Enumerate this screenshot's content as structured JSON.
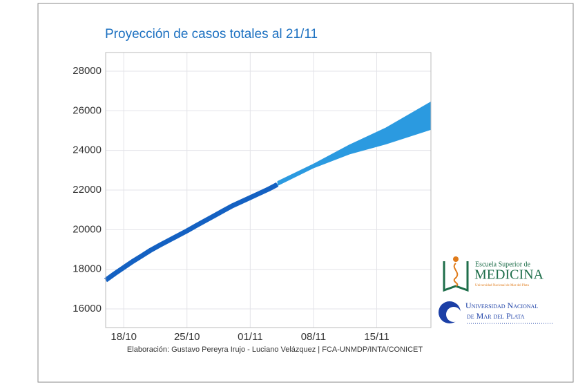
{
  "chart_data": {
    "type": "line",
    "title": "Proyección de casos totales al 21/11",
    "source": "Elaboración: Gustavo Pereyra Irujo - Luciano Velázquez | FCA-UNMDP/INTA/CONICET",
    "xlim": [
      "16/10",
      "21/11"
    ],
    "xticks": [
      "18/10",
      "25/10",
      "01/11",
      "08/11",
      "15/11"
    ],
    "ylim": [
      15060,
      28940
    ],
    "yticks": [
      16000,
      18000,
      20000,
      22000,
      24000,
      26000,
      28000
    ],
    "grid": true,
    "series": [
      {
        "color": "#1461c2",
        "x": [
          "16/10",
          "17/10",
          "18/10",
          "19/10",
          "20/10",
          "21/10",
          "22/10",
          "23/10",
          "24/10",
          "25/10",
          "26/10",
          "27/10",
          "28/10",
          "29/10",
          "30/10",
          "31/10",
          "01/11",
          "02/11",
          "03/11",
          "04/11"
        ],
        "values": [
          17450,
          17780,
          18090,
          18400,
          18680,
          18970,
          19220,
          19460,
          19700,
          19940,
          20200,
          20450,
          20700,
          20950,
          21200,
          21410,
          21620,
          21830,
          22040,
          22280
        ]
      }
    ],
    "band": {
      "color": "#2b9ae0",
      "x": [
        "04/11",
        "08/11",
        "12/11",
        "16/11",
        "21/11"
      ],
      "lower": [
        22200,
        23100,
        23800,
        24300,
        25040
      ],
      "upper": [
        22450,
        23330,
        24300,
        25150,
        26470
      ]
    }
  },
  "logos": {
    "school_top": "Escuela Superior de",
    "school": "MEDICINA",
    "school_sub": "Universidad Nacional de Mar del Plata",
    "university_1": "Universidad Nacional",
    "university_2": "de Mar del Plata"
  }
}
